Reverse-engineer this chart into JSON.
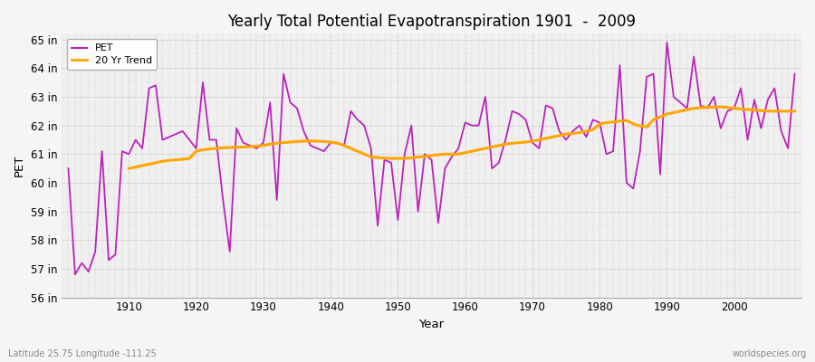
{
  "title": "Yearly Total Potential Evapotranspiration 1901  -  2009",
  "ylabel": "PET",
  "xlabel": "Year",
  "subtitle": "Latitude 25.75 Longitude -111.25",
  "watermark": "worldspecies.org",
  "pet_color": "#BB22BB",
  "trend_color": "#FFA500",
  "background_color": "#F5F5F5",
  "plot_bg_color": "#F0F0F0",
  "years": [
    1901,
    1902,
    1903,
    1904,
    1905,
    1906,
    1907,
    1908,
    1909,
    1910,
    1911,
    1912,
    1913,
    1914,
    1915,
    1916,
    1917,
    1918,
    1919,
    1920,
    1921,
    1922,
    1923,
    1924,
    1925,
    1926,
    1927,
    1928,
    1929,
    1930,
    1931,
    1932,
    1933,
    1934,
    1935,
    1936,
    1937,
    1938,
    1939,
    1940,
    1941,
    1942,
    1943,
    1944,
    1945,
    1946,
    1947,
    1948,
    1949,
    1950,
    1951,
    1952,
    1953,
    1954,
    1955,
    1956,
    1957,
    1958,
    1959,
    1960,
    1961,
    1962,
    1963,
    1964,
    1965,
    1966,
    1967,
    1968,
    1969,
    1970,
    1971,
    1972,
    1973,
    1974,
    1975,
    1976,
    1977,
    1978,
    1979,
    1980,
    1981,
    1982,
    1983,
    1984,
    1985,
    1986,
    1987,
    1988,
    1989,
    1990,
    1991,
    1992,
    1993,
    1994,
    1995,
    1996,
    1997,
    1998,
    1999,
    2000,
    2001,
    2002,
    2003,
    2004,
    2005,
    2006,
    2007,
    2008,
    2009
  ],
  "pet_values": [
    60.5,
    56.8,
    57.2,
    56.9,
    57.6,
    61.1,
    57.3,
    57.5,
    61.1,
    61.0,
    61.5,
    61.2,
    63.3,
    63.4,
    61.5,
    61.6,
    61.7,
    61.8,
    61.5,
    61.2,
    63.5,
    61.5,
    61.5,
    59.4,
    57.6,
    61.9,
    61.4,
    61.3,
    61.2,
    61.4,
    62.8,
    59.4,
    63.8,
    62.8,
    62.6,
    61.8,
    61.3,
    61.2,
    61.1,
    61.4,
    61.4,
    61.3,
    62.5,
    62.2,
    62.0,
    61.2,
    58.5,
    60.8,
    60.7,
    58.7,
    61.0,
    62.0,
    59.0,
    61.0,
    60.8,
    58.6,
    60.5,
    60.9,
    61.2,
    62.1,
    62.0,
    62.0,
    63.0,
    60.5,
    60.7,
    61.5,
    62.5,
    62.4,
    62.2,
    61.4,
    61.2,
    62.7,
    62.6,
    61.8,
    61.5,
    61.8,
    62.0,
    61.6,
    62.2,
    62.1,
    61.0,
    61.1,
    64.1,
    60.0,
    59.8,
    61.1,
    63.7,
    63.8,
    60.3,
    64.9,
    63.0,
    62.8,
    62.6,
    64.4,
    62.7,
    62.6,
    63.0,
    61.9,
    62.5,
    62.6,
    63.3,
    61.5,
    62.9,
    61.9,
    62.9,
    63.3,
    61.8,
    61.2,
    63.8
  ],
  "trend_years": [
    1910,
    1911,
    1912,
    1913,
    1914,
    1915,
    1916,
    1917,
    1918,
    1919,
    1920,
    1921,
    1922,
    1923,
    1924,
    1925,
    1926,
    1927,
    1928,
    1929,
    1930,
    1931,
    1932,
    1933,
    1934,
    1935,
    1936,
    1937,
    1938,
    1939,
    1940,
    1941,
    1942,
    1943,
    1944,
    1945,
    1946,
    1947,
    1948,
    1949,
    1950,
    1951,
    1952,
    1953,
    1954,
    1955,
    1956,
    1957,
    1958,
    1959,
    1960,
    1961,
    1962,
    1963,
    1964,
    1965,
    1966,
    1967,
    1968,
    1969,
    1970,
    1971,
    1972,
    1973,
    1974,
    1975,
    1976,
    1977,
    1978,
    1979,
    1980,
    1981,
    1982,
    1983,
    1984,
    1985,
    1986,
    1987,
    1988,
    1989,
    1990,
    1991,
    1992,
    1993,
    1994,
    1995,
    1996,
    1997,
    1998,
    1999,
    2000,
    2001,
    2002,
    2003,
    2004,
    2005,
    2006,
    2007,
    2008,
    2009
  ],
  "trend_values": [
    60.5,
    60.55,
    60.6,
    60.65,
    60.7,
    60.75,
    60.78,
    60.8,
    60.82,
    60.85,
    61.1,
    61.15,
    61.18,
    61.2,
    61.22,
    61.23,
    61.24,
    61.25,
    61.26,
    61.28,
    61.3,
    61.35,
    61.38,
    61.4,
    61.42,
    61.44,
    61.45,
    61.46,
    61.45,
    61.44,
    61.42,
    61.38,
    61.3,
    61.2,
    61.1,
    61.0,
    60.9,
    60.88,
    60.86,
    60.85,
    60.85,
    60.85,
    60.87,
    60.9,
    60.92,
    60.95,
    60.98,
    61.0,
    61.0,
    61.0,
    61.05,
    61.1,
    61.15,
    61.2,
    61.25,
    61.3,
    61.35,
    61.38,
    61.4,
    61.42,
    61.45,
    61.5,
    61.55,
    61.6,
    61.65,
    61.7,
    61.72,
    61.75,
    61.8,
    61.85,
    62.05,
    62.1,
    62.12,
    62.15,
    62.18,
    62.05,
    61.98,
    61.95,
    62.2,
    62.3,
    62.4,
    62.45,
    62.5,
    62.55,
    62.6,
    62.62,
    62.63,
    62.64,
    62.65,
    62.63,
    62.6,
    62.58,
    62.56,
    62.54,
    62.52,
    62.5,
    62.5,
    62.5,
    62.5,
    62.5
  ],
  "ylim": [
    56,
    65.2
  ],
  "yticks": [
    56,
    57,
    58,
    59,
    60,
    61,
    62,
    63,
    64,
    65
  ],
  "ytick_labels": [
    "56 in",
    "57 in",
    "58 in",
    "59 in",
    "60 in",
    "61 in",
    "62 in",
    "63 in",
    "64 in",
    "65 in"
  ],
  "xlim": [
    1900,
    2010
  ],
  "xticks": [
    1910,
    1920,
    1930,
    1940,
    1950,
    1960,
    1970,
    1980,
    1990,
    2000
  ],
  "legend_pet_label": "PET",
  "legend_trend_label": "20 Yr Trend",
  "pet_linewidth": 1.3,
  "trend_linewidth": 2.2
}
